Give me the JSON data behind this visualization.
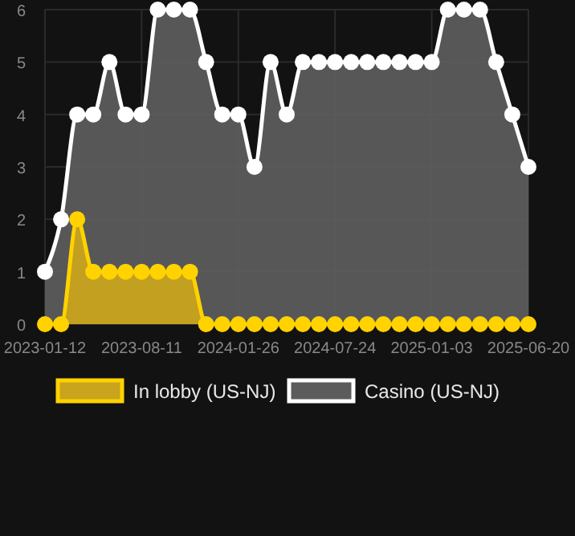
{
  "chart_data": {
    "type": "area",
    "categories": [
      "2023-01-12",
      null,
      null,
      null,
      null,
      null,
      "2023-08-11",
      null,
      null,
      null,
      null,
      null,
      "2024-01-26",
      null,
      null,
      null,
      null,
      null,
      "2024-07-24",
      null,
      null,
      null,
      null,
      null,
      "2025-01-03",
      null,
      null,
      null,
      null,
      null,
      "2025-06-20"
    ],
    "series": [
      {
        "name": "In lobby (US-NJ)",
        "color": "#ffd200",
        "values": [
          0,
          0,
          2,
          1,
          1,
          1,
          1,
          1,
          1,
          1,
          0,
          0,
          0,
          0,
          0,
          0,
          0,
          0,
          0,
          0,
          0,
          0,
          0,
          0,
          0,
          0,
          0,
          0,
          0,
          0,
          0
        ]
      },
      {
        "name": "Casino (US-NJ)",
        "color": "#ffffff",
        "values": [
          1,
          2,
          4,
          4,
          5,
          4,
          4,
          6,
          6,
          6,
          5,
          4,
          4,
          3,
          5,
          4,
          5,
          5,
          5,
          5,
          5,
          5,
          5,
          5,
          5,
          6,
          6,
          6,
          5,
          4,
          3
        ]
      }
    ],
    "ylim": [
      0,
      6
    ],
    "yticks": [
      0,
      1,
      2,
      3,
      4,
      5,
      6
    ],
    "grid": true,
    "legend": "bottom",
    "marker": "circle"
  }
}
